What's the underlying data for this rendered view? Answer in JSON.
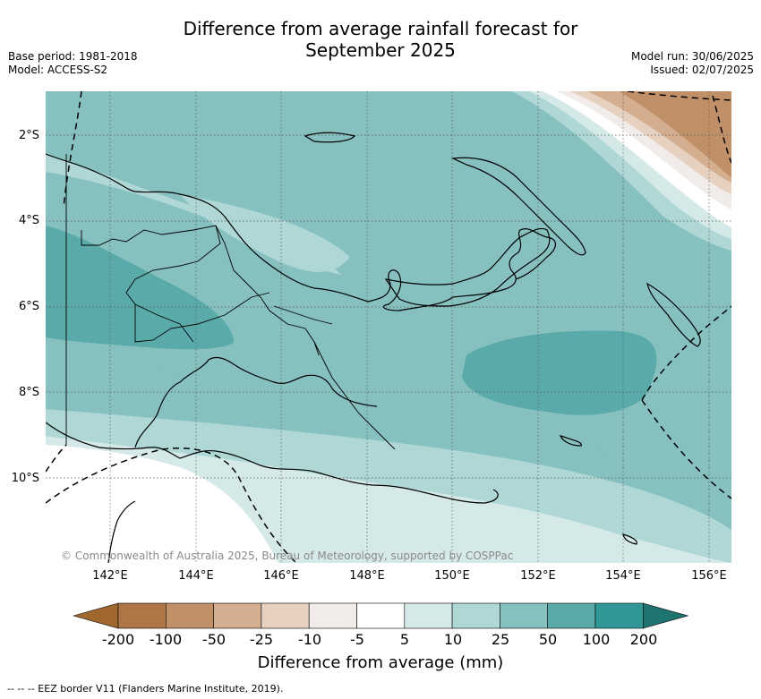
{
  "title_line1": "Difference from average rainfall forecast for",
  "title_line2": "September 2025",
  "meta_left": {
    "base_period": "Base period: 1981-2018",
    "model": "Model: ACCESS-S2"
  },
  "meta_right": {
    "model_run": "Model run: 30/06/2025",
    "issued": "Issued: 02/07/2025"
  },
  "map": {
    "lat_labels": [
      "2°S",
      "4°S",
      "6°S",
      "8°S",
      "10°S"
    ],
    "lon_labels": [
      "142°E",
      "144°E",
      "146°E",
      "148°E",
      "150°E",
      "152°E",
      "154°E",
      "156°E"
    ],
    "copyright": "© Commonwealth of Australia 2025, Bureau of Meteorology, supported by COSPPac"
  },
  "colorbar": {
    "title": "Difference from average (mm)",
    "tick_labels": [
      "-200",
      "-100",
      "-50",
      "-25",
      "-10",
      "-5",
      "5",
      "10",
      "25",
      "50",
      "100",
      "200"
    ],
    "colors": [
      "#a0672f",
      "#ad7644",
      "#c09068",
      "#d4ae8e",
      "#e6d1c0",
      "#f1ece9",
      "#ffffff",
      "#d5e9e8",
      "#aed7d6",
      "#86c1c0",
      "#5baaaa",
      "#309896",
      "#1f7472"
    ]
  },
  "footer": {
    "eez_note": "--  --  -- EEZ border V11 (Flanders Marine Institute, 2019)."
  }
}
